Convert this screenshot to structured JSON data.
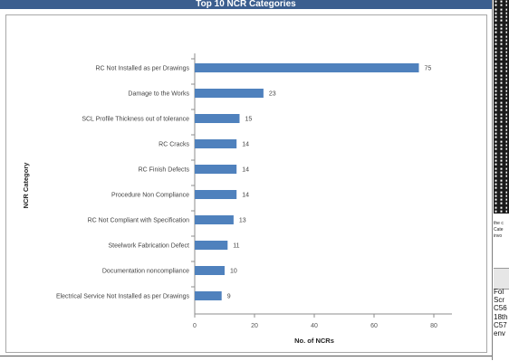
{
  "title": "Top 10 NCR Categories",
  "chart_data": {
    "type": "bar",
    "orientation": "horizontal",
    "title": "Top 10 NCR Categories",
    "xlabel": "No. of NCRs",
    "ylabel": "NCR Category",
    "xlim": [
      0,
      80
    ],
    "x_ticks": [
      "0",
      "20",
      "40",
      "60",
      "80"
    ],
    "categories": [
      "RC Not Installed as per Drawings",
      "Damage to the Works",
      "SCL Profile Thickness out of tolerance",
      "RC Cracks",
      "RC Finish Defects",
      "Procedure Non Compliance",
      "RC Not Compliant with Specification",
      "Steelwork Fabrication Defect",
      "Documentation noncompliance",
      "Electrical Service Not Installed as per Drawings"
    ],
    "values": [
      75,
      23,
      15,
      14,
      14,
      14,
      13,
      11,
      10,
      9
    ],
    "bar_color": "#4f81bd",
    "grid": false,
    "legend": "none"
  },
  "side_panel": {
    "top_text": [
      "the c",
      "Cate",
      "invo"
    ],
    "lower_text": [
      "Fol",
      "Scr",
      "C56",
      "18th",
      "C57",
      "env"
    ]
  }
}
